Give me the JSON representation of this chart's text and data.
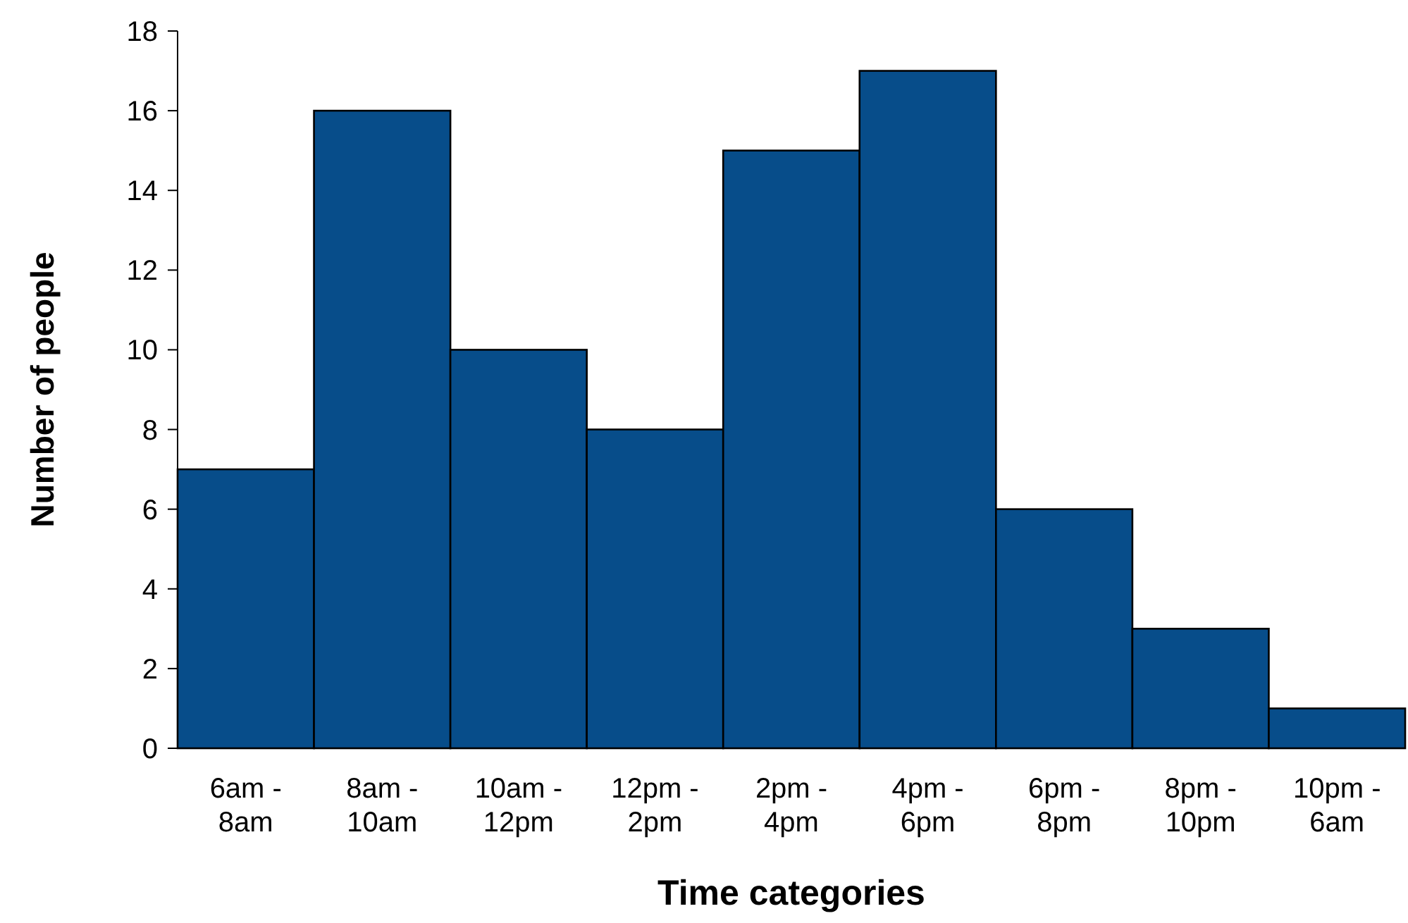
{
  "chart_data": {
    "type": "bar",
    "xlabel": "Time categories",
    "ylabel": "Number of people",
    "categories": [
      "6am - 8am",
      "8am - 10am",
      "10am - 12pm",
      "12pm - 2pm",
      "2pm - 4pm",
      "4pm - 6pm",
      "6pm - 8pm",
      "8pm - 10pm",
      "10pm - 6am"
    ],
    "values": [
      7,
      16,
      10,
      8,
      15,
      17,
      6,
      3,
      1
    ],
    "color": "#074d8a",
    "ylim": [
      0,
      18
    ],
    "yticks": [
      0,
      2,
      4,
      6,
      8,
      10,
      12,
      14,
      16,
      18
    ]
  }
}
